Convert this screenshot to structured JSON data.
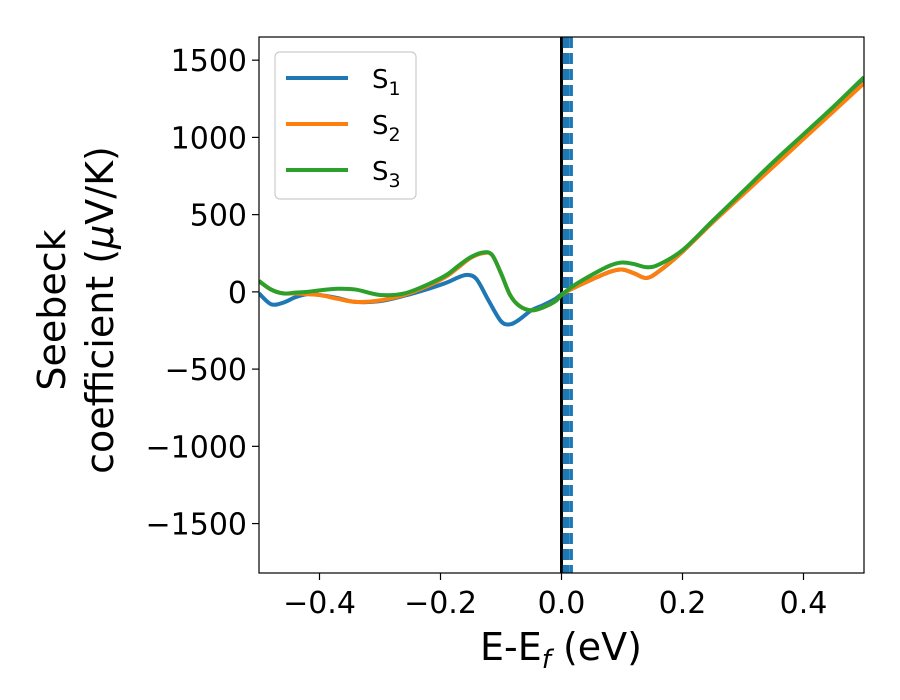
{
  "chart_data": {
    "type": "line",
    "xlabel": "E-E",
    "xlabel_sub": "f",
    "xlabel_unit": " (eV)",
    "ylabel_line1": "Seebeck",
    "ylabel_line2_pre": "coefficient  (",
    "ylabel_mu": "μ",
    "ylabel_line2_post": "V/K)",
    "xlim": [
      -0.5,
      0.5
    ],
    "ylim": [
      -1820,
      1650
    ],
    "xticks": [
      -0.4,
      -0.2,
      0.0,
      0.2,
      0.4
    ],
    "xtick_labels": [
      "−0.4",
      "−0.2",
      "0.0",
      "0.2",
      "0.4"
    ],
    "yticks": [
      1500,
      1000,
      500,
      0,
      -500,
      -1000,
      -1500
    ],
    "ytick_labels": [
      "1500",
      "1000",
      "500",
      "0",
      "−500",
      "−1000",
      "−1500"
    ],
    "grid": false,
    "legend_position": "top-left",
    "vertical_lines": [
      {
        "x": 0.0,
        "color": "#000000",
        "style": "solid"
      },
      {
        "x": 0.005,
        "color": "#1f77b4",
        "style": "dashed"
      },
      {
        "x": 0.01,
        "color": "#1f77b4",
        "style": "dashed"
      },
      {
        "x": 0.016,
        "color": "#1f77b4",
        "style": "dashed"
      }
    ],
    "series": [
      {
        "name": "S",
        "sub": "1",
        "color": "#1f77b4",
        "x": [
          -0.5,
          -0.48,
          -0.46,
          -0.44,
          -0.42,
          -0.4,
          -0.37,
          -0.34,
          -0.3,
          -0.26,
          -0.22,
          -0.19,
          -0.17,
          -0.155,
          -0.14,
          -0.12,
          -0.1,
          -0.085,
          -0.07,
          -0.05,
          -0.03,
          -0.01,
          0.0,
          0.02,
          0.05,
          0.08,
          0.1,
          0.12,
          0.14,
          0.16,
          0.2,
          0.25,
          0.3,
          0.35,
          0.4,
          0.45,
          0.5
        ],
        "y": [
          -10,
          -80,
          -70,
          -35,
          -15,
          -20,
          -40,
          -65,
          -60,
          -25,
          20,
          60,
          95,
          110,
          80,
          -60,
          -190,
          -210,
          -180,
          -120,
          -85,
          -45,
          -15,
          25,
          80,
          130,
          145,
          120,
          90,
          130,
          260,
          460,
          640,
          820,
          1000,
          1180,
          1360
        ]
      },
      {
        "name": "S",
        "sub": "2",
        "color": "#ff7f0e",
        "x": [
          -0.5,
          -0.48,
          -0.46,
          -0.44,
          -0.42,
          -0.4,
          -0.37,
          -0.34,
          -0.3,
          -0.26,
          -0.22,
          -0.19,
          -0.17,
          -0.15,
          -0.13,
          -0.115,
          -0.1,
          -0.085,
          -0.07,
          -0.05,
          -0.03,
          -0.01,
          0.0,
          0.02,
          0.05,
          0.08,
          0.1,
          0.12,
          0.14,
          0.16,
          0.2,
          0.25,
          0.3,
          0.35,
          0.4,
          0.45,
          0.5
        ],
        "y": [
          70,
          15,
          -10,
          -10,
          -15,
          -20,
          -45,
          -65,
          -55,
          -20,
          40,
          100,
          160,
          220,
          250,
          240,
          120,
          -20,
          -90,
          -120,
          -100,
          -60,
          -20,
          25,
          80,
          130,
          145,
          120,
          90,
          130,
          260,
          450,
          630,
          810,
          990,
          1170,
          1350
        ]
      },
      {
        "name": "S",
        "sub": "3",
        "color": "#2ca02c",
        "x": [
          -0.5,
          -0.48,
          -0.46,
          -0.44,
          -0.42,
          -0.4,
          -0.37,
          -0.34,
          -0.3,
          -0.26,
          -0.22,
          -0.19,
          -0.17,
          -0.15,
          -0.13,
          -0.115,
          -0.1,
          -0.085,
          -0.07,
          -0.05,
          -0.03,
          -0.01,
          0.0,
          0.02,
          0.05,
          0.08,
          0.1,
          0.12,
          0.14,
          0.16,
          0.2,
          0.25,
          0.3,
          0.35,
          0.4,
          0.45,
          0.5
        ],
        "y": [
          70,
          15,
          -10,
          -5,
          0,
          10,
          20,
          15,
          -20,
          -10,
          50,
          110,
          170,
          225,
          255,
          240,
          120,
          -20,
          -90,
          -120,
          -100,
          -60,
          -20,
          40,
          110,
          170,
          190,
          180,
          160,
          175,
          270,
          460,
          650,
          840,
          1020,
          1200,
          1390
        ]
      }
    ]
  }
}
